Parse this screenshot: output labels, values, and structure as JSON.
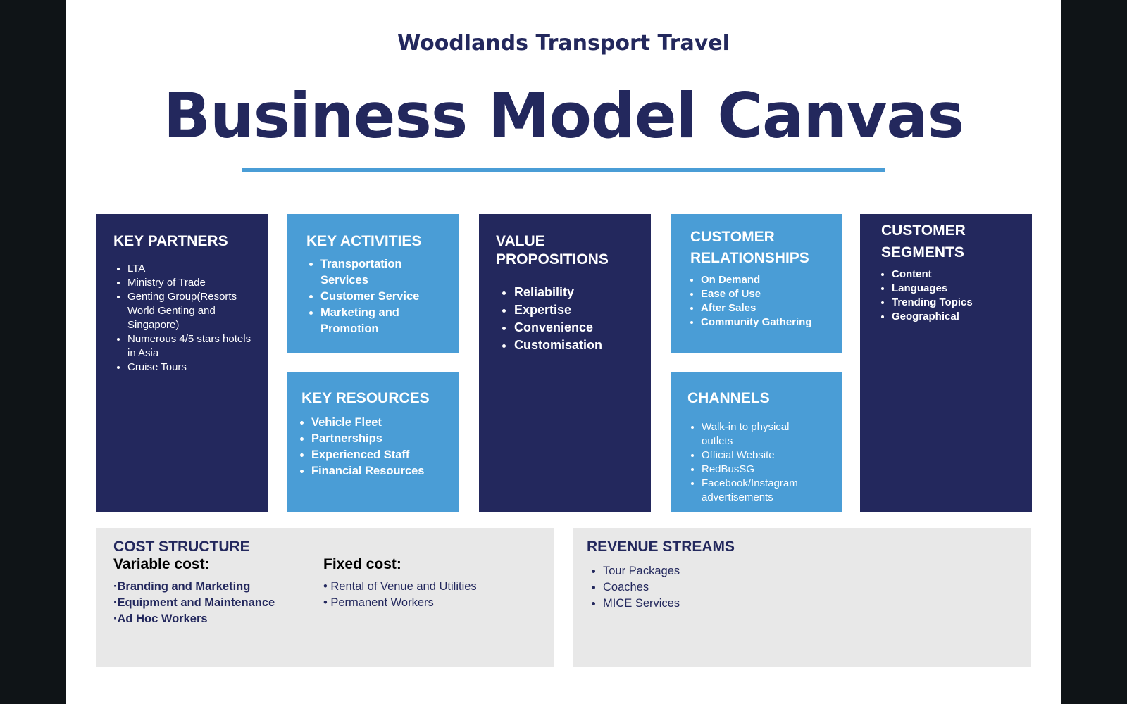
{
  "header": {
    "company": "Woodlands Transport Travel",
    "title": "Business Model Canvas"
  },
  "key_partners": {
    "heading": "KEY PARTNERS",
    "items": [
      "LTA",
      "Ministry of Trade",
      "Genting Group(Resorts World Genting and Singapore)",
      "Numerous 4/5 stars hotels in Asia",
      "Cruise Tours"
    ]
  },
  "key_activities": {
    "heading": "KEY ACTIVITIES",
    "items": [
      "Transportation Services",
      "Customer Service",
      "Marketing and Promotion"
    ]
  },
  "key_resources": {
    "heading": "KEY RESOURCES",
    "items": [
      "Vehicle Fleet",
      "Partnerships",
      "Experienced Staff",
      "Financial Resources"
    ]
  },
  "value_propositions": {
    "heading": "VALUE PROPOSITIONS",
    "items": [
      "Reliability",
      "Expertise",
      "Convenience",
      "Customisation"
    ]
  },
  "customer_relationships": {
    "heading": "CUSTOMER RELATIONSHIPS",
    "items": [
      "On Demand",
      "Ease of Use",
      "After Sales",
      "Community Gathering"
    ]
  },
  "channels": {
    "heading": "CHANNELS",
    "items": [
      "Walk-in to physical outlets",
      "Official Website",
      "RedBusSG",
      "Facebook/Instagram advertisements"
    ]
  },
  "customer_segments": {
    "heading": "CUSTOMER SEGMENTS",
    "items": [
      "Content",
      "Languages",
      "Trending Topics",
      "Geographical"
    ]
  },
  "cost_structure": {
    "heading": "COST STRUCTURE",
    "variable_label": "Variable cost:",
    "variable_items": [
      "·Branding and Marketing",
      "·Equipment and Maintenance",
      "·Ad Hoc Workers"
    ],
    "fixed_label": "Fixed cost:",
    "fixed_items": [
      "• Rental of Venue and Utilities",
      "• Permanent Workers"
    ]
  },
  "revenue_streams": {
    "heading": "REVENUE STREAMS",
    "items": [
      "Tour Packages",
      "Coaches",
      "MICE Services"
    ]
  },
  "colors": {
    "navy": "#23285d",
    "sky": "#4a9dd6",
    "grey": "#e8e8e8"
  }
}
